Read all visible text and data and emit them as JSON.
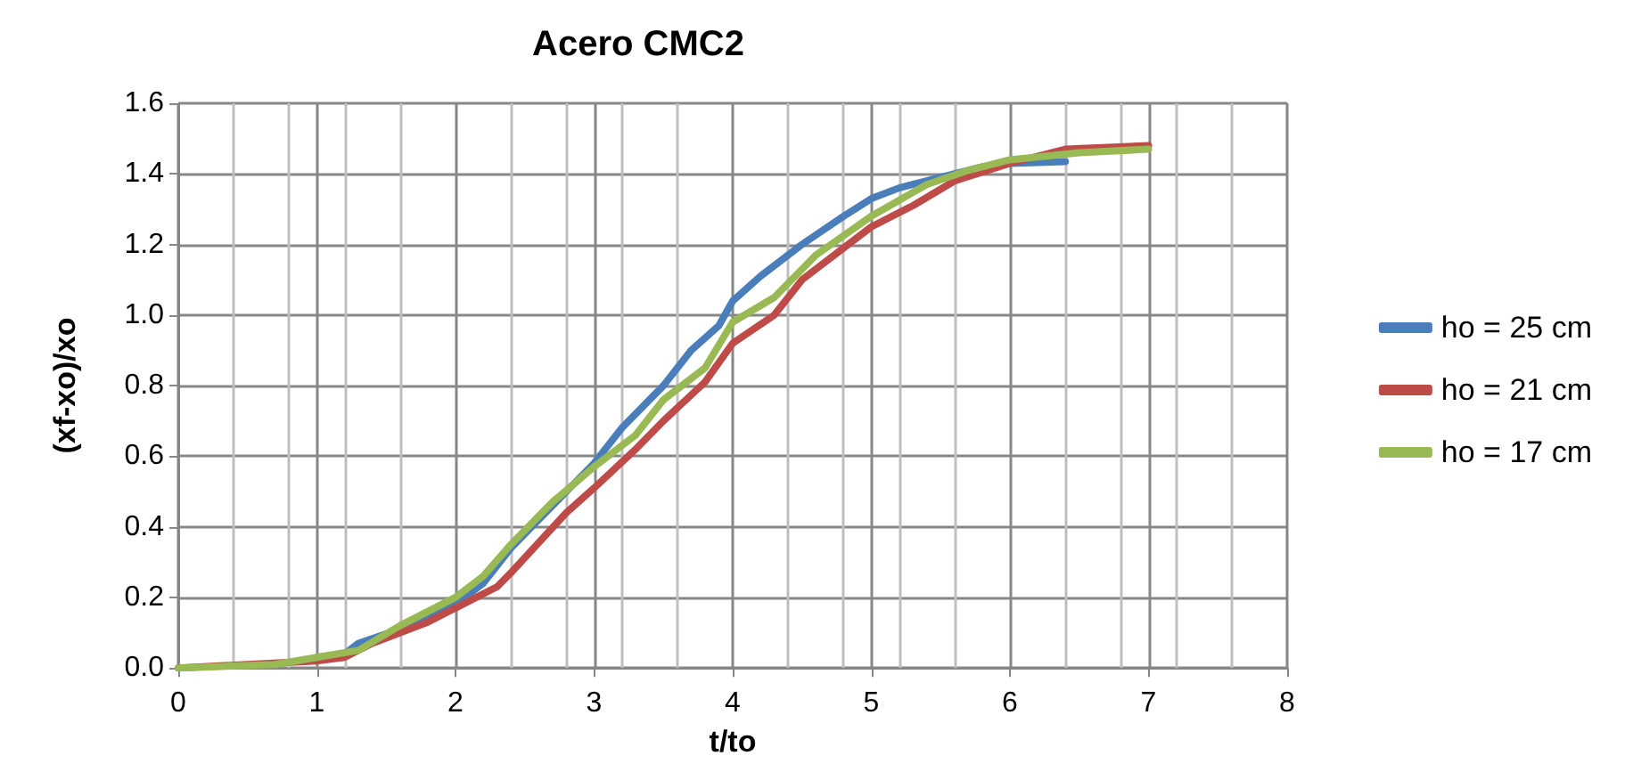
{
  "chart_data": {
    "type": "line",
    "title": "Acero CMC2",
    "xlabel": "t/to",
    "ylabel": "(xf-xo)/xo",
    "xlim": [
      0,
      8
    ],
    "xticks": [
      0,
      1,
      2,
      3,
      4,
      5,
      6,
      7,
      8
    ],
    "ylim": [
      0,
      1.6
    ],
    "yticks": [
      {
        "value": 0,
        "label": "0.0"
      },
      {
        "value": 0.2,
        "label": "0.2"
      },
      {
        "value": 0.4,
        "label": "0.4"
      },
      {
        "value": 0.6,
        "label": "0.6"
      },
      {
        "value": 0.8,
        "label": "0.8"
      },
      {
        "value": 1.0,
        "label": "1.0"
      },
      {
        "value": 1.2,
        "label": "1.2"
      },
      {
        "value": 1.4,
        "label": "1.4"
      },
      {
        "value": 1.6,
        "label": "1.6"
      }
    ],
    "grid": true,
    "legend": "right",
    "marker": "none",
    "line_style": "solid",
    "series": [
      {
        "name": "ho = 25 cm",
        "color": "#4a7ebb",
        "x": [
          1.0,
          1.2,
          1.3,
          1.6,
          2.0,
          2.2,
          2.4,
          2.8,
          3.0,
          3.2,
          3.5,
          3.7,
          3.9,
          4.0,
          4.2,
          4.5,
          4.8,
          5.0,
          5.2,
          5.5,
          5.8,
          6.0,
          6.4
        ],
        "values": [
          0.03,
          0.04,
          0.07,
          0.11,
          0.18,
          0.24,
          0.34,
          0.5,
          0.58,
          0.68,
          0.8,
          0.9,
          0.97,
          1.04,
          1.11,
          1.2,
          1.28,
          1.33,
          1.36,
          1.39,
          1.42,
          1.43,
          1.435
        ]
      },
      {
        "name": "ho = 21 cm",
        "color": "#be4b48",
        "x": [
          0,
          1.0,
          1.2,
          1.4,
          1.8,
          2.0,
          2.3,
          2.4,
          2.8,
          3.0,
          3.3,
          3.5,
          3.8,
          4.0,
          4.3,
          4.5,
          4.8,
          5.0,
          5.3,
          5.6,
          6.0,
          6.4,
          7.0
        ],
        "values": [
          0,
          0.02,
          0.03,
          0.07,
          0.13,
          0.17,
          0.23,
          0.27,
          0.44,
          0.51,
          0.62,
          0.7,
          0.81,
          0.92,
          1.0,
          1.1,
          1.19,
          1.25,
          1.31,
          1.38,
          1.43,
          1.47,
          1.48
        ]
      },
      {
        "name": "ho = 17 cm",
        "color": "#98b954",
        "x": [
          0,
          0.7,
          1.0,
          1.3,
          1.6,
          2.0,
          2.2,
          2.4,
          2.7,
          3.0,
          3.3,
          3.5,
          3.8,
          4.0,
          4.3,
          4.6,
          5.0,
          5.4,
          5.7,
          6.0,
          6.5,
          7.0
        ],
        "values": [
          0,
          0.01,
          0.03,
          0.05,
          0.12,
          0.2,
          0.26,
          0.35,
          0.47,
          0.57,
          0.66,
          0.76,
          0.85,
          0.98,
          1.05,
          1.17,
          1.28,
          1.37,
          1.41,
          1.44,
          1.46,
          1.47
        ]
      }
    ]
  }
}
